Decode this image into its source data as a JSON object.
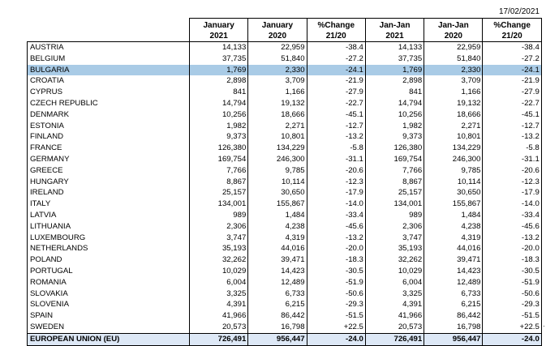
{
  "date": "17/02/2021",
  "headers": [
    {
      "line1": "January",
      "line2": "2021"
    },
    {
      "line1": "January",
      "line2": "2020"
    },
    {
      "line1": "%Change",
      "line2": "21/20"
    },
    {
      "line1": "Jan-Jan",
      "line2": "2021"
    },
    {
      "line1": "Jan-Jan",
      "line2": "2020"
    },
    {
      "line1": "%Change",
      "line2": "21/20"
    }
  ],
  "rows": [
    {
      "country": "AUSTRIA",
      "v": [
        "14,133",
        "22,959",
        "-38.4",
        "14,133",
        "22,959",
        "-38.4"
      ]
    },
    {
      "country": "BELGIUM",
      "v": [
        "37,735",
        "51,840",
        "-27.2",
        "37,735",
        "51,840",
        "-27.2"
      ]
    },
    {
      "country": "BULGARIA",
      "v": [
        "1,769",
        "2,330",
        "-24.1",
        "1,769",
        "2,330",
        "-24.1"
      ],
      "highlight": true
    },
    {
      "country": "CROATIA",
      "v": [
        "2,898",
        "3,709",
        "-21.9",
        "2,898",
        "3,709",
        "-21.9"
      ]
    },
    {
      "country": "CYPRUS",
      "v": [
        "841",
        "1,166",
        "-27.9",
        "841",
        "1,166",
        "-27.9"
      ]
    },
    {
      "country": "CZECH REPUBLIC",
      "v": [
        "14,794",
        "19,132",
        "-22.7",
        "14,794",
        "19,132",
        "-22.7"
      ]
    },
    {
      "country": "DENMARK",
      "v": [
        "10,256",
        "18,666",
        "-45.1",
        "10,256",
        "18,666",
        "-45.1"
      ]
    },
    {
      "country": "ESTONIA",
      "v": [
        "1,982",
        "2,271",
        "-12.7",
        "1,982",
        "2,271",
        "-12.7"
      ]
    },
    {
      "country": "FINLAND",
      "v": [
        "9,373",
        "10,801",
        "-13.2",
        "9,373",
        "10,801",
        "-13.2"
      ]
    },
    {
      "country": "FRANCE",
      "v": [
        "126,380",
        "134,229",
        "-5.8",
        "126,380",
        "134,229",
        "-5.8"
      ]
    },
    {
      "country": "GERMANY",
      "v": [
        "169,754",
        "246,300",
        "-31.1",
        "169,754",
        "246,300",
        "-31.1"
      ]
    },
    {
      "country": "GREECE",
      "v": [
        "7,766",
        "9,785",
        "-20.6",
        "7,766",
        "9,785",
        "-20.6"
      ]
    },
    {
      "country": "HUNGARY",
      "v": [
        "8,867",
        "10,114",
        "-12.3",
        "8,867",
        "10,114",
        "-12.3"
      ]
    },
    {
      "country": "IRELAND",
      "v": [
        "25,157",
        "30,650",
        "-17.9",
        "25,157",
        "30,650",
        "-17.9"
      ]
    },
    {
      "country": "ITALY",
      "v": [
        "134,001",
        "155,867",
        "-14.0",
        "134,001",
        "155,867",
        "-14.0"
      ]
    },
    {
      "country": "LATVIA",
      "v": [
        "989",
        "1,484",
        "-33.4",
        "989",
        "1,484",
        "-33.4"
      ]
    },
    {
      "country": "LITHUANIA",
      "v": [
        "2,306",
        "4,238",
        "-45.6",
        "2,306",
        "4,238",
        "-45.6"
      ]
    },
    {
      "country": "LUXEMBOURG",
      "v": [
        "3,747",
        "4,319",
        "-13.2",
        "3,747",
        "4,319",
        "-13.2"
      ]
    },
    {
      "country": "NETHERLANDS",
      "v": [
        "35,193",
        "44,016",
        "-20.0",
        "35,193",
        "44,016",
        "-20.0"
      ]
    },
    {
      "country": "POLAND",
      "v": [
        "32,262",
        "39,471",
        "-18.3",
        "32,262",
        "39,471",
        "-18.3"
      ]
    },
    {
      "country": "PORTUGAL",
      "v": [
        "10,029",
        "14,423",
        "-30.5",
        "10,029",
        "14,423",
        "-30.5"
      ]
    },
    {
      "country": "ROMANIA",
      "v": [
        "6,004",
        "12,489",
        "-51.9",
        "6,004",
        "12,489",
        "-51.9"
      ]
    },
    {
      "country": "SLOVAKIA",
      "v": [
        "3,325",
        "6,733",
        "-50.6",
        "3,325",
        "6,733",
        "-50.6"
      ]
    },
    {
      "country": "SLOVENIA",
      "v": [
        "4,391",
        "6,215",
        "-29.3",
        "4,391",
        "6,215",
        "-29.3"
      ]
    },
    {
      "country": "SPAIN",
      "v": [
        "41,966",
        "86,442",
        "-51.5",
        "41,966",
        "86,442",
        "-51.5"
      ]
    },
    {
      "country": "SWEDEN",
      "v": [
        "20,573",
        "16,798",
        "+22.5",
        "20,573",
        "16,798",
        "+22.5"
      ]
    }
  ],
  "total": {
    "country": "EUROPEAN UNION (EU)",
    "v": [
      "726,491",
      "956,447",
      "-24.0",
      "726,491",
      "956,447",
      "-24.0"
    ]
  }
}
